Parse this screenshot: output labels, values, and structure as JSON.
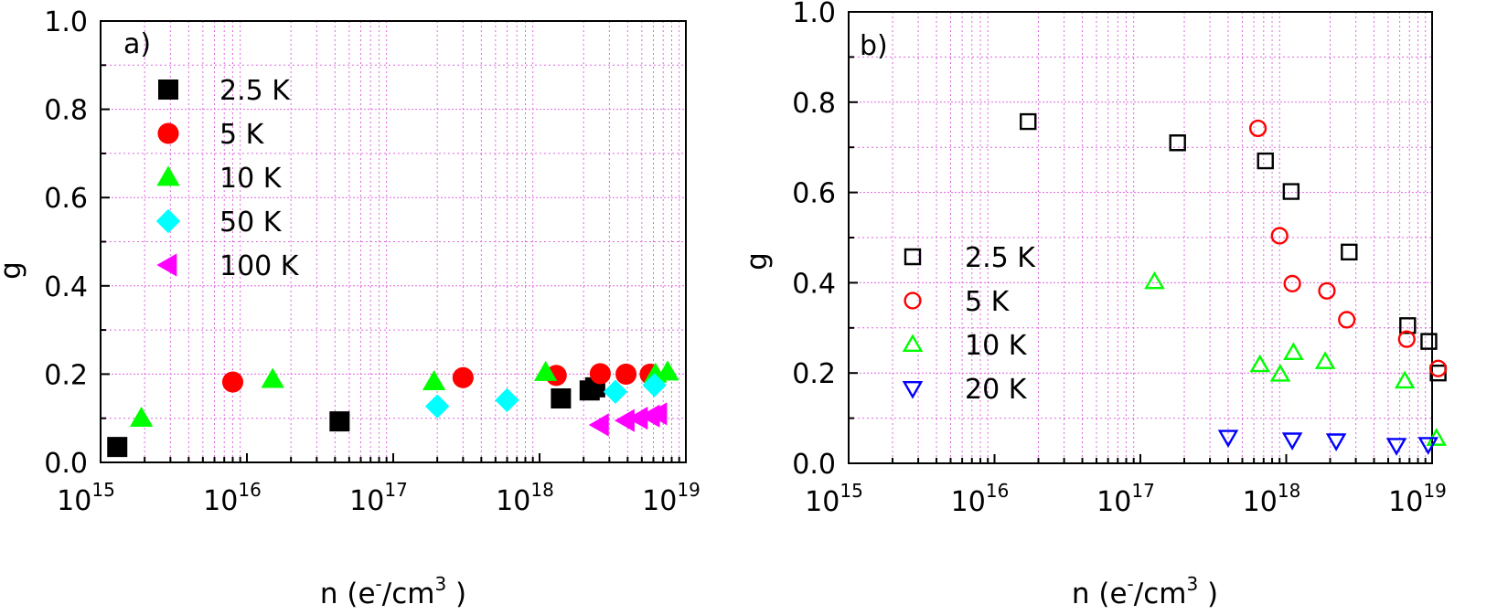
{
  "chart_data": [
    {
      "type": "scatter",
      "panel_label": "a)",
      "xlabel": "n (e-/cm3 )",
      "xlabel_parts": {
        "base": "n (e",
        "sup1": "-",
        "mid": "/cm",
        "sup2": "3",
        "end": " )"
      },
      "ylabel": "g",
      "xscale": "log",
      "xlim": [
        1000000000000000.0,
        1e+19
      ],
      "ylim": [
        0,
        1.0
      ],
      "x_tick_exponents": [
        "15",
        "16",
        "17",
        "18",
        "19"
      ],
      "x_tick_base": "10",
      "y_ticks": [
        "0.0",
        "0.2",
        "0.4",
        "0.6",
        "0.8",
        "1.0"
      ],
      "filled_markers": true,
      "series": [
        {
          "name": "2.5 K",
          "marker": "square",
          "color": "#000000",
          "x": [
            1300000000000000.0,
            4.3e+16,
            1.4e+18,
            2.2e+18,
            2.4e+18
          ],
          "y": [
            0.035,
            0.093,
            0.145,
            0.163,
            0.17
          ]
        },
        {
          "name": "5 K",
          "marker": "circle",
          "color": "#ff0000",
          "x": [
            8000000000000000.0,
            3e+17,
            1.3e+18,
            2.6e+18,
            3.9e+18,
            5.7e+18
          ],
          "y": [
            0.182,
            0.192,
            0.197,
            0.201,
            0.2,
            0.2
          ]
        },
        {
          "name": "10 K",
          "marker": "triangle-up",
          "color": "#00ff00",
          "x": [
            1900000000000000.0,
            1.5e+16,
            1.9e+17,
            1.1e+18,
            6.2e+18,
            7.5e+18
          ],
          "y": [
            0.1,
            0.188,
            0.183,
            0.204,
            0.2,
            0.205
          ]
        },
        {
          "name": "50 K",
          "marker": "diamond",
          "color": "#00ffff",
          "x": [
            2e+17,
            6e+17,
            3.3e+18,
            6.1e+18
          ],
          "y": [
            0.127,
            0.141,
            0.16,
            0.175
          ]
        },
        {
          "name": "100 K",
          "marker": "triangle-left",
          "color": "#ff00ff",
          "x": [
            2.6e+18,
            3.9e+18,
            4.8e+18,
            5.8e+18,
            6.5e+18
          ],
          "y": [
            0.085,
            0.095,
            0.1,
            0.105,
            0.11
          ]
        }
      ]
    },
    {
      "type": "scatter",
      "panel_label": "b)",
      "xlabel": "n (e-/cm3 )",
      "xlabel_parts": {
        "base": "n (e",
        "sup1": "-",
        "mid": "/cm",
        "sup2": "3",
        "end": " )"
      },
      "ylabel": "g",
      "xscale": "log",
      "xlim": [
        1000000000000000.0,
        1e+19
      ],
      "ylim": [
        0,
        1.0
      ],
      "x_tick_exponents": [
        "15",
        "16",
        "17",
        "18",
        "19"
      ],
      "x_tick_base": "10",
      "y_ticks": [
        "0.0",
        "0.2",
        "0.4",
        "0.6",
        "0.8",
        "1.0"
      ],
      "filled_markers": false,
      "series": [
        {
          "name": "2.5 K",
          "marker": "square",
          "color": "#000000",
          "x": [
            1.7e+16,
            1.8e+17,
            7.2e+17,
            1.08e+18,
            2.7e+18,
            6.8e+18,
            9.5e+18,
            1.1e+19
          ],
          "y": [
            0.757,
            0.71,
            0.67,
            0.602,
            0.468,
            0.305,
            0.27,
            0.2
          ]
        },
        {
          "name": "5 K",
          "marker": "circle",
          "color": "#ff0000",
          "x": [
            6.4e+17,
            9e+17,
            1.1e+18,
            1.9e+18,
            2.6e+18,
            6.7e+18,
            1.1e+19
          ],
          "y": [
            0.742,
            0.504,
            0.398,
            0.382,
            0.318,
            0.275,
            0.21
          ]
        },
        {
          "name": "10 K",
          "marker": "triangle-up",
          "color": "#00ff00",
          "x": [
            1.25e+17,
            6.6e+17,
            9.1e+17,
            1.12e+18,
            1.85e+18,
            6.5e+18,
            1.07e+19
          ],
          "y": [
            0.402,
            0.218,
            0.197,
            0.245,
            0.225,
            0.182,
            0.055
          ]
        },
        {
          "name": "20 K",
          "marker": "triangle-down",
          "color": "#0000ff",
          "x": [
            4e+17,
            1.1e+18,
            2.2e+18,
            5.7e+18,
            9.4e+18
          ],
          "y": [
            0.058,
            0.052,
            0.05,
            0.04,
            0.042
          ]
        }
      ]
    }
  ]
}
